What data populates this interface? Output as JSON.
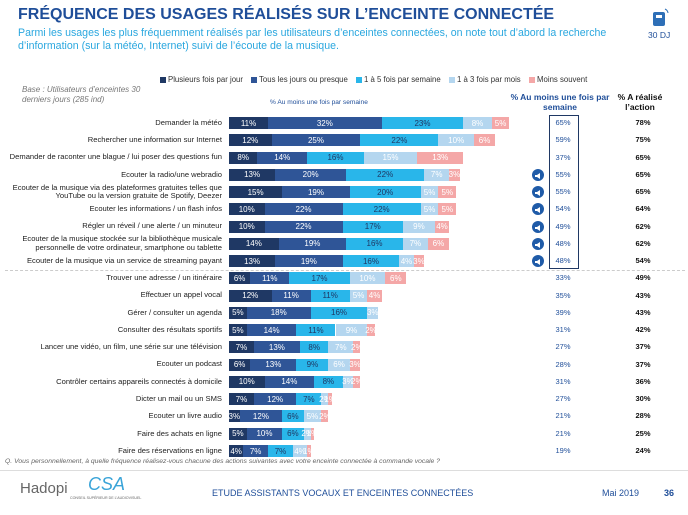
{
  "header": {
    "title": "FRÉQUENCE DES USAGES RÉALISÉS SUR L’ENCEINTE CONNECTÉE",
    "subtitle": "Parmi les usages les plus fréquemment réalisés par les utilisateurs d’enceintes connectées, on note tout d’abord la recherche d’information (sur la météo, Internet) suivi de l’écoute de la musique.",
    "badge": "30 DJ"
  },
  "chart_data": {
    "type": "bar",
    "orientation": "horizontal",
    "stacked": true,
    "base": "Base : Utilisateurs d’enceintes 30 derniers jours (285 ind)",
    "annotation": "% Au moins une fois par semaine",
    "categories": [
      "Demander la météo",
      "Rechercher une information sur Internet",
      "Demander de raconter une blague / lui poser des questions fun",
      "Ecouter la radio/une webradio",
      "Ecouter de la musique via des plateformes gratuites telles que YouTube ou la version gratuite de Spotify, Deezer",
      "Ecouter les informations / un flash infos",
      "Régler un réveil / une alerte / un minuteur",
      "Ecouter de la musique stockée sur la bibliothèque musicale personnelle de votre ordinateur, smartphone ou tablette",
      "Ecouter de la musique via un service de streaming payant",
      "Trouver une adresse / un itinéraire",
      "Effectuer un appel vocal",
      "Gérer / consulter un agenda",
      "Consulter des résultats sportifs",
      "Lancer une vidéo, un film, une série sur une télévision",
      "Ecouter un podcast",
      "Contrôler certains appareils connectés à domicile",
      "Dicter un mail ou un SMS",
      "Ecouter un livre audio",
      "Faire des achats en ligne",
      "Faire des réservations en ligne"
    ],
    "series": [
      {
        "name": "Plusieurs fois par jour",
        "color": "#1f3864",
        "values": [
          11,
          12,
          8,
          13,
          15,
          10,
          10,
          14,
          13,
          6,
          12,
          5,
          5,
          7,
          6,
          10,
          7,
          3,
          5,
          4
        ],
        "value_labels": [
          "11%",
          "12%",
          "8%",
          "13%",
          "15%",
          "10%",
          "10%",
          "14%",
          "13%",
          "6%",
          "12%",
          "5%",
          "5%",
          "7%",
          "6%",
          "10%",
          "7%",
          "3%",
          "5%",
          "4%"
        ]
      },
      {
        "name": "Tous les jours ou presque",
        "color": "#2f5597",
        "values": [
          32,
          25,
          14,
          20,
          19,
          22,
          22,
          19,
          19,
          11,
          11,
          18,
          14,
          13,
          13,
          14,
          12,
          12,
          10,
          7
        ],
        "value_labels": [
          "32%",
          "25%",
          "14%",
          "20%",
          "19%",
          "22%",
          "22%",
          "19%",
          "19%",
          "11%",
          "11%",
          "18%",
          "14%",
          "13%",
          "13%",
          "14%",
          "12%",
          "12%",
          "10%",
          "7%"
        ]
      },
      {
        "name": "1 à 5 fois par semaine",
        "color": "#29b6ea",
        "values": [
          23,
          22,
          16,
          22,
          20,
          22,
          17,
          16,
          16,
          17,
          11,
          16,
          11,
          8,
          9,
          8,
          7,
          6,
          6,
          7
        ],
        "value_labels": [
          "23%",
          "22%",
          "16%",
          "22%",
          "20%",
          "22%",
          "17%",
          "16%",
          "16%",
          "17%",
          "11%",
          "16%",
          "11%",
          "8%",
          "9%",
          "8%",
          "7%",
          "6%",
          "6%",
          "7%"
        ]
      },
      {
        "name": "1 à 3 fois par mois",
        "color": "#b4d6ef",
        "values": [
          8,
          10,
          15,
          7,
          5,
          5,
          9,
          7,
          4,
          10,
          5,
          3,
          9,
          7,
          6,
          3,
          2,
          5,
          2,
          4
        ],
        "value_labels": [
          "8%",
          "10%",
          "15%",
          "7%",
          "5%",
          "5%",
          "9%",
          "7%",
          "4%",
          "10%",
          "5%",
          "3%",
          "9%",
          "7%",
          "6%",
          "3%",
          "2%",
          "5%",
          "2%",
          "4%"
        ]
      },
      {
        "name": "Moins souvent",
        "color": "#f4a7a7",
        "values": [
          5,
          6,
          13,
          3,
          5,
          5,
          4,
          6,
          3,
          6,
          4,
          null,
          2,
          2,
          3,
          2,
          1,
          2,
          1,
          1
        ],
        "value_labels": [
          "5%",
          "6%",
          "13%",
          "3%",
          "5%",
          "5%",
          "4%",
          "6%",
          "3%",
          "6%",
          "4%",
          null,
          "2%",
          "2%",
          "3%",
          "2%",
          "1%",
          "2%",
          "1%",
          "1%"
        ]
      }
    ],
    "columns": [
      {
        "name": "% Au moins une fois par semaine",
        "labels": [
          "65%",
          "59%",
          "37%",
          "55%",
          "55%",
          "54%",
          "49%",
          "48%",
          "48%",
          "33%",
          "35%",
          "39%",
          "31%",
          "27%",
          "28%",
          "31%",
          "27%",
          "21%",
          "21%",
          "19%"
        ]
      },
      {
        "name": "% A réalisé l’action",
        "labels": [
          "78%",
          "75%",
          "65%",
          "65%",
          "65%",
          "64%",
          "62%",
          "62%",
          "54%",
          "49%",
          "43%",
          "43%",
          "42%",
          "37%",
          "37%",
          "36%",
          "30%",
          "28%",
          "25%",
          "24%"
        ]
      }
    ]
  },
  "footer": {
    "question": "Q. Vous personnellement, à quelle fréquence réalisez-vous chacune des actions suivantes avec votre enceinte connectée à commande vocale ?",
    "logo1": "Hadopi",
    "logo2": "CSA",
    "logo2_sub": "CONSEIL SUPÉRIEUR DE L’AUDIOVISUEL",
    "study": "ETUDE ASSISTANTS VOCAUX ET ENCEINTES CONNECTÉES",
    "date": "Mai 2019",
    "page": "36"
  }
}
